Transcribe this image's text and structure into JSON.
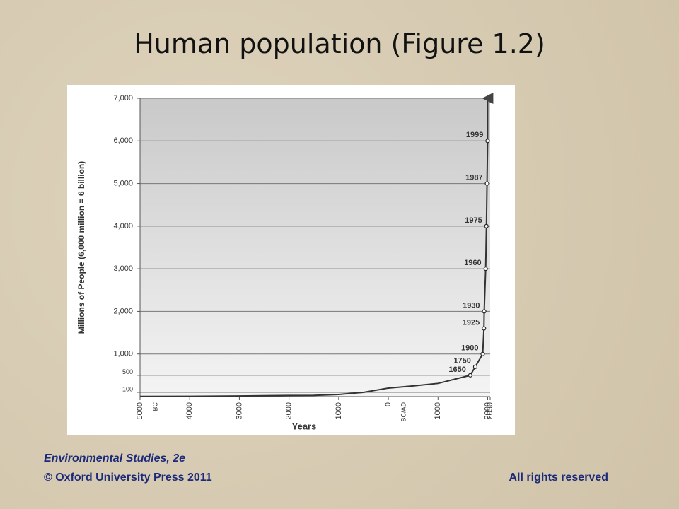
{
  "chart_data": {
    "type": "line",
    "title": "Human population (Figure 1.2)",
    "x_label": "Years",
    "y_label": "Millions of People (6,000 million = 6 billion)",
    "x": [
      -5000,
      -4000,
      -3000,
      -2000,
      -1500,
      -1000,
      -500,
      0,
      500,
      1000,
      1650,
      1750,
      1900,
      1925,
      1930,
      1960,
      1975,
      1987,
      1999
    ],
    "series": [
      {
        "name": "Population",
        "color": "#333333",
        "values": [
          5,
          7,
          14,
          27,
          30,
          50,
          100,
          200,
          250,
          310,
          500,
          700,
          1000,
          1600,
          2000,
          3000,
          4000,
          5000,
          6000
        ]
      }
    ],
    "point_annotations": [
      {
        "x": 1650,
        "y": 500
      },
      {
        "x": 1750,
        "y": 700
      },
      {
        "x": 1900,
        "y": 1000
      },
      {
        "x": 1925,
        "y": 1600
      },
      {
        "x": 1930,
        "y": 2000
      },
      {
        "x": 1960,
        "y": 3000
      },
      {
        "x": 1975,
        "y": 4000
      },
      {
        "x": 1987,
        "y": 5000
      },
      {
        "x": 1999,
        "y": 6000
      }
    ],
    "era_labels": [
      "BC",
      "BC/AD"
    ],
    "xlim": [
      -5000,
      2050
    ],
    "xticks": [
      {
        "value": -5000,
        "label": "5000"
      },
      {
        "value": -4000,
        "label": "4000"
      },
      {
        "value": -3000,
        "label": "3000"
      },
      {
        "value": -2000,
        "label": "2000"
      },
      {
        "value": -1000,
        "label": "1000"
      },
      0,
      1000,
      2000,
      2050
    ],
    "ylim": [
      0,
      7000
    ],
    "yticks": [
      100,
      500,
      {
        "value": 1000,
        "label": "1,000"
      },
      {
        "value": 2000,
        "label": "2,000"
      },
      {
        "value": 3000,
        "label": "3,000"
      },
      {
        "value": 4000,
        "label": "4,000"
      },
      {
        "value": 5000,
        "label": "5,000"
      },
      {
        "value": 6000,
        "label": "6,000"
      },
      {
        "value": 7000,
        "label": "7,000"
      }
    ],
    "grid": true
  },
  "footer": {
    "book": "Environmental Studies, 2e",
    "copyright": "© Oxford University Press 2011",
    "rights": "All rights reserved"
  }
}
